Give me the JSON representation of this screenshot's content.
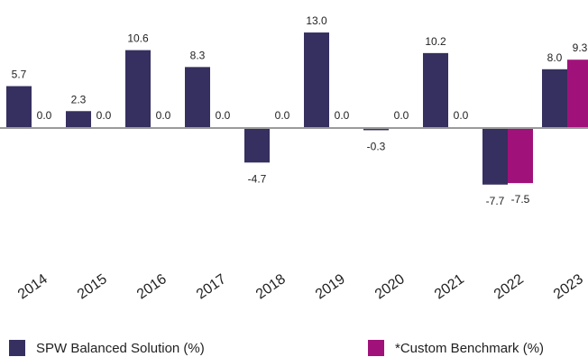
{
  "chart_data": {
    "type": "bar",
    "categories": [
      "2014",
      "2015",
      "2016",
      "2017",
      "2018",
      "2019",
      "2020",
      "2021",
      "2022",
      "2023"
    ],
    "series": [
      {
        "name": "SPW Balanced Solution (%)",
        "color": "#35305f",
        "values": [
          5.7,
          2.3,
          10.6,
          8.3,
          -4.7,
          13.0,
          -0.3,
          10.2,
          -7.7,
          8.0
        ],
        "labels": [
          "5.7",
          "2.3",
          "10.6",
          "8.3",
          "-4.7",
          "13.0",
          "-0.3",
          "10.2",
          "-7.7",
          "8.0"
        ]
      },
      {
        "name": "*Custom Benchmark (%)",
        "color": "#a0127a",
        "values": [
          0.0,
          0.0,
          0.0,
          0.0,
          0.0,
          0.0,
          0.0,
          0.0,
          -7.5,
          9.3
        ],
        "labels": [
          "0.0",
          "0.0",
          "0.0",
          "0.0",
          "0.0",
          "0.0",
          "0.0",
          "0.0",
          "-7.5",
          "9.3"
        ]
      }
    ],
    "axis_color": "#9a9a9a",
    "ylim": [
      -13,
      14.5
    ],
    "grid": false,
    "legend_position": "bottom"
  }
}
